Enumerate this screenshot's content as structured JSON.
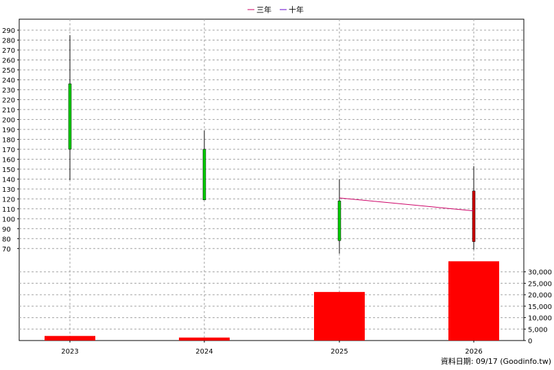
{
  "chart_data": {
    "type": "candlestick-bar",
    "legend": [
      {
        "name": "三年",
        "color": "#cc0066"
      },
      {
        "name": "十年",
        "color": "#6600cc"
      }
    ],
    "legend_placement": "top-center",
    "categories": [
      "2023",
      "2024",
      "2025",
      "2026"
    ],
    "price": {
      "ylim": [
        65,
        290
      ],
      "yticks": [
        290,
        280,
        270,
        260,
        250,
        240,
        230,
        220,
        210,
        200,
        190,
        180,
        170,
        160,
        150,
        140,
        130,
        120,
        110,
        100,
        90,
        80,
        70
      ],
      "candles": [
        {
          "x": "2023",
          "open": 170,
          "close": 236,
          "high": 285,
          "low": 139,
          "color": "#00cc00"
        },
        {
          "x": "2024",
          "open": 119,
          "close": 170,
          "high": 189,
          "low": 119,
          "color": "#00cc00"
        },
        {
          "x": "2025",
          "open": 78,
          "close": 118,
          "high": 140,
          "low": 65,
          "color": "#00cc00"
        },
        {
          "x": "2026",
          "open": 128,
          "close": 77,
          "high": 153,
          "low": 69,
          "color": "#cc0000"
        }
      ],
      "series": [
        {
          "name": "三年",
          "color": "#cc0066",
          "points": [
            {
              "x": "2025",
              "y": 121
            },
            {
              "x": "2026",
              "y": 108
            }
          ]
        }
      ]
    },
    "volume": {
      "ylim": [
        0,
        35000
      ],
      "yticks": [
        0,
        5000,
        10000,
        15000,
        20000,
        25000,
        30000
      ],
      "ytick_labels": [
        "0",
        "5,000",
        "10,000",
        "15,000",
        "20,000",
        "25,000",
        "30,000"
      ],
      "values": [
        2000,
        1300,
        21200,
        34600
      ],
      "color": "#ff0000"
    },
    "grid": true
  },
  "footer": "資料日期: 09/17  (Goodinfo.tw)"
}
